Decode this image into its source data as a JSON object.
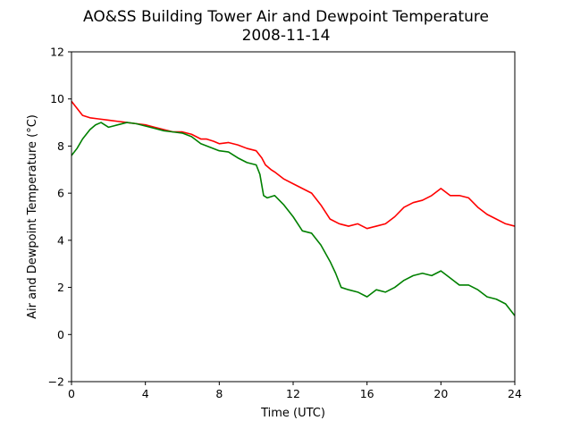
{
  "chart_data": {
    "type": "line",
    "title": "AO&SS Building Tower Air and Dewpoint Temperature",
    "subtitle": "2008-11-14",
    "xlabel": "Time (UTC)",
    "ylabel": "Air and Dewpoint Temperature (°C)",
    "xlim": [
      0,
      24
    ],
    "ylim": [
      -2,
      12
    ],
    "xticks": [
      0,
      4,
      8,
      12,
      16,
      20,
      24
    ],
    "yticks": [
      -2,
      0,
      2,
      4,
      6,
      8,
      10,
      12
    ],
    "x_tick_labels": [
      "0",
      "4",
      "8",
      "12",
      "16",
      "20",
      "24"
    ],
    "y_tick_labels": [
      "−2",
      "0",
      "2",
      "4",
      "6",
      "8",
      "10",
      "12"
    ],
    "grid": false,
    "series": [
      {
        "color": "#ff0000",
        "x": [
          0,
          0.3,
          0.6,
          1,
          1.5,
          2,
          2.5,
          3,
          3.5,
          4,
          4.5,
          5,
          5.5,
          6,
          6.5,
          7,
          7.3,
          7.7,
          8,
          8.5,
          9,
          9.5,
          10,
          10.3,
          10.5,
          10.8,
          11,
          11.5,
          12,
          12.5,
          13,
          13.5,
          14,
          14.5,
          15,
          15.5,
          16,
          16.5,
          17,
          17.5,
          18,
          18.5,
          19,
          19.5,
          20,
          20.5,
          21,
          21.5,
          22,
          22.5,
          23,
          23.5,
          24
        ],
        "y": [
          9.9,
          9.6,
          9.3,
          9.2,
          9.15,
          9.1,
          9.05,
          9.0,
          8.95,
          8.9,
          8.8,
          8.7,
          8.6,
          8.6,
          8.5,
          8.3,
          8.3,
          8.2,
          8.1,
          8.15,
          8.05,
          7.9,
          7.8,
          7.5,
          7.2,
          7.0,
          6.9,
          6.6,
          6.4,
          6.2,
          6.0,
          5.5,
          4.9,
          4.7,
          4.6,
          4.7,
          4.5,
          4.6,
          4.7,
          5.0,
          5.4,
          5.6,
          5.7,
          5.9,
          6.2,
          5.9,
          5.9,
          5.8,
          5.4,
          5.1,
          4.9,
          4.7,
          4.6
        ]
      },
      {
        "color": "#008000",
        "x": [
          0,
          0.3,
          0.6,
          1,
          1.3,
          1.6,
          2,
          2.5,
          3,
          3.5,
          4,
          4.5,
          5,
          5.5,
          6,
          6.5,
          7,
          7.5,
          8,
          8.5,
          9,
          9.5,
          10,
          10.2,
          10.4,
          10.6,
          11,
          11.5,
          12,
          12.5,
          13,
          13.5,
          14,
          14.3,
          14.6,
          15,
          15.5,
          16,
          16.5,
          17,
          17.5,
          18,
          18.5,
          19,
          19.5,
          20,
          20.5,
          21,
          21.5,
          22,
          22.5,
          23,
          23.5,
          24
        ],
        "y": [
          7.6,
          7.9,
          8.3,
          8.7,
          8.9,
          9.0,
          8.8,
          8.9,
          9.0,
          8.95,
          8.85,
          8.75,
          8.65,
          8.6,
          8.55,
          8.4,
          8.1,
          7.95,
          7.8,
          7.75,
          7.5,
          7.3,
          7.2,
          6.8,
          5.9,
          5.8,
          5.9,
          5.5,
          5.0,
          4.4,
          4.3,
          3.8,
          3.1,
          2.6,
          2.0,
          1.9,
          1.8,
          1.6,
          1.9,
          1.8,
          2.0,
          2.3,
          2.5,
          2.6,
          2.5,
          2.7,
          2.4,
          2.1,
          2.1,
          1.9,
          1.6,
          1.5,
          1.3,
          0.8
        ]
      }
    ]
  }
}
